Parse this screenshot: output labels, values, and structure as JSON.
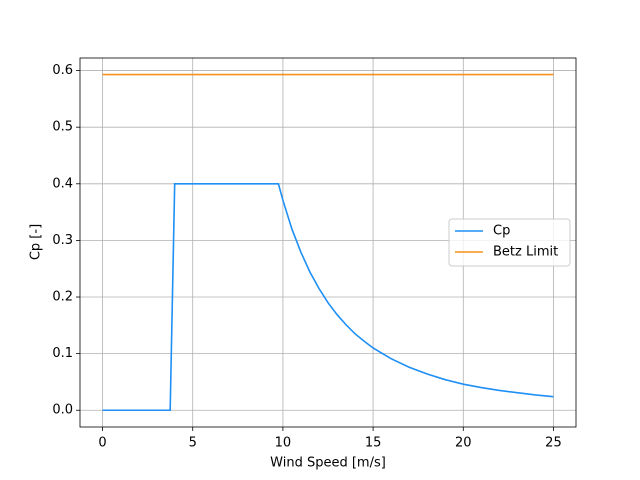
{
  "chart_data": {
    "type": "line",
    "xlabel": "Wind Speed [m/s]",
    "ylabel": "Cp [-]",
    "x": [
      0,
      3.75,
      4,
      9.75,
      10,
      10.5,
      11,
      11.5,
      12,
      12.5,
      13,
      13.5,
      14,
      14.5,
      15,
      16,
      17,
      18,
      19,
      20,
      21,
      22,
      23,
      24,
      25
    ],
    "series": [
      {
        "name": "Cp",
        "color": "#1e8ff5",
        "values": [
          0,
          0,
          0.4,
          0.4,
          0.371,
          0.32,
          0.279,
          0.244,
          0.215,
          0.19,
          0.169,
          0.151,
          0.135,
          0.122,
          0.11,
          0.091,
          0.076,
          0.064,
          0.054,
          0.046,
          0.04,
          0.035,
          0.031,
          0.027,
          0.024
        ]
      },
      {
        "name": "Betz Limit",
        "color": "#f5901c",
        "values": [
          0.593,
          0.593,
          0.593,
          0.593,
          0.593,
          0.593,
          0.593,
          0.593,
          0.593,
          0.593,
          0.593,
          0.593,
          0.593,
          0.593,
          0.593,
          0.593,
          0.593,
          0.593,
          0.593,
          0.593,
          0.593,
          0.593,
          0.593,
          0.593,
          0.593
        ]
      }
    ],
    "xlim": [
      -1.25,
      26.25
    ],
    "xticks": [
      0,
      5,
      10,
      15,
      20,
      25
    ],
    "ylim": [
      -0.0296,
      0.6222
    ],
    "yticks": [
      {
        "value": 0,
        "label": "0.0"
      },
      0.1,
      0.2,
      0.3,
      0.4,
      0.5,
      0.6
    ],
    "grid": true,
    "legend": "center right"
  }
}
